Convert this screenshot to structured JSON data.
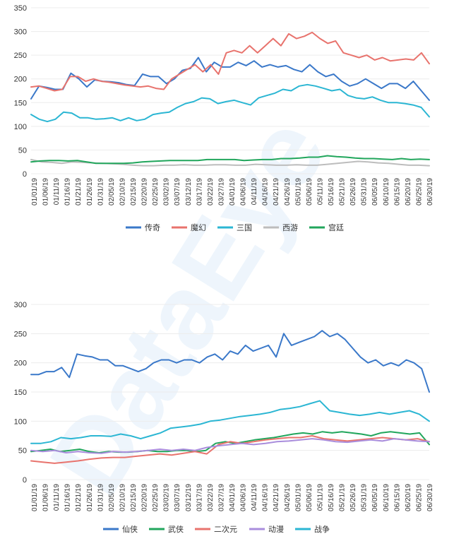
{
  "watermark": "DataEye",
  "chart_data": [
    {
      "type": "line",
      "ylim": [
        0,
        350
      ],
      "yticks": [
        0,
        50,
        100,
        150,
        200,
        250,
        300,
        350
      ],
      "x_tick_labels": [
        "01/01/19",
        "01/06/19",
        "01/11/19",
        "01/16/19",
        "01/21/19",
        "01/26/19",
        "01/31/19",
        "02/05/19",
        "02/10/19",
        "02/15/19",
        "02/20/19",
        "02/25/19",
        "03/02/19",
        "03/07/19",
        "03/12/19",
        "03/17/19",
        "03/22/19",
        "03/27/19",
        "04/01/19",
        "04/06/19",
        "04/11/19",
        "04/16/19",
        "04/21/19",
        "04/26/19",
        "05/01/19",
        "05/06/19",
        "05/11/19",
        "05/16/19",
        "05/21/19",
        "05/26/19",
        "05/31/19",
        "06/05/19",
        "06/10/19",
        "06/15/19",
        "06/20/19",
        "06/25/19",
        "06/30/19"
      ],
      "legend_position": "bottom",
      "series": [
        {
          "name": "传奇",
          "color": "#3a78c9",
          "values": [
            158,
            185,
            182,
            178,
            178,
            212,
            200,
            183,
            198,
            195,
            194,
            192,
            188,
            186,
            210,
            205,
            205,
            190,
            200,
            218,
            222,
            245,
            215,
            235,
            225,
            225,
            235,
            228,
            238,
            225,
            230,
            225,
            228,
            220,
            215,
            230,
            215,
            205,
            210,
            195,
            185,
            190,
            200,
            190,
            180,
            190,
            190,
            180,
            195,
            175,
            155
          ]
        },
        {
          "name": "魔幻",
          "color": "#e8736d",
          "values": [
            183,
            185,
            180,
            175,
            178,
            205,
            205,
            195,
            200,
            195,
            193,
            190,
            187,
            185,
            183,
            185,
            180,
            178,
            200,
            210,
            220,
            230,
            215,
            230,
            210,
            255,
            260,
            255,
            270,
            255,
            270,
            285,
            270,
            295,
            285,
            290,
            298,
            285,
            275,
            280,
            255,
            250,
            245,
            250,
            240,
            245,
            238,
            240,
            242,
            240,
            255,
            232
          ]
        },
        {
          "name": "三国",
          "color": "#2bb6d3",
          "values": [
            125,
            115,
            110,
            115,
            130,
            128,
            118,
            118,
            115,
            116,
            118,
            112,
            118,
            112,
            115,
            125,
            128,
            130,
            140,
            148,
            152,
            160,
            158,
            148,
            152,
            155,
            150,
            145,
            160,
            165,
            170,
            178,
            175,
            185,
            188,
            185,
            180,
            175,
            178,
            165,
            160,
            158,
            162,
            155,
            150,
            150,
            148,
            145,
            140,
            120
          ]
        },
        {
          "name": "西游",
          "color": "#bdbdbd",
          "values": [
            30,
            25,
            24,
            22,
            25,
            24,
            23,
            22,
            21,
            20,
            18,
            17,
            17,
            18,
            18,
            19,
            18,
            18,
            19,
            19,
            18,
            18,
            20,
            19,
            18,
            18,
            19,
            18,
            18,
            20,
            22,
            24,
            26,
            25,
            23,
            22,
            20,
            18,
            18,
            17
          ]
        },
        {
          "name": "宫廷",
          "color": "#21a65c",
          "values": [
            25,
            27,
            28,
            28,
            27,
            28,
            25,
            22,
            22,
            22,
            22,
            23,
            25,
            26,
            27,
            28,
            28,
            28,
            28,
            30,
            30,
            30,
            30,
            28,
            29,
            30,
            30,
            32,
            32,
            33,
            35,
            35,
            38,
            36,
            35,
            33,
            32,
            32,
            31,
            30,
            32,
            30,
            31,
            30
          ]
        }
      ]
    },
    {
      "type": "line",
      "ylim": [
        0,
        300
      ],
      "yticks": [
        0,
        50,
        100,
        150,
        200,
        250,
        300
      ],
      "x_tick_labels": [
        "01/01/19",
        "01/06/19",
        "01/11/19",
        "01/16/19",
        "01/21/19",
        "01/26/19",
        "01/31/19",
        "02/05/19",
        "02/10/19",
        "02/15/19",
        "02/20/19",
        "02/25/19",
        "03/02/19",
        "03/07/19",
        "03/12/19",
        "03/17/19",
        "03/22/19",
        "03/27/19",
        "04/01/19",
        "04/06/19",
        "04/11/19",
        "04/16/19",
        "04/21/19",
        "04/26/19",
        "05/01/19",
        "05/06/19",
        "05/11/19",
        "05/16/19",
        "05/21/19",
        "05/26/19",
        "05/31/19",
        "06/05/19",
        "06/10/19",
        "06/15/19",
        "06/20/19",
        "06/25/19",
        "06/30/19"
      ],
      "legend_position": "bottom",
      "series": [
        {
          "name": "仙侠",
          "color": "#3a78c9",
          "values": [
            180,
            180,
            185,
            185,
            192,
            175,
            215,
            212,
            210,
            205,
            205,
            195,
            195,
            190,
            185,
            190,
            200,
            205,
            205,
            200,
            205,
            205,
            200,
            210,
            215,
            205,
            220,
            215,
            230,
            220,
            225,
            230,
            210,
            250,
            230,
            235,
            240,
            245,
            255,
            245,
            250,
            240,
            225,
            210,
            200,
            205,
            195,
            200,
            195,
            205,
            200,
            190,
            150
          ]
        },
        {
          "name": "武侠",
          "color": "#21a65c",
          "values": [
            48,
            50,
            52,
            48,
            50,
            52,
            48,
            46,
            48,
            47,
            47,
            48,
            50,
            48,
            48,
            50,
            50,
            48,
            50,
            62,
            65,
            62,
            65,
            68,
            70,
            72,
            75,
            78,
            80,
            78,
            82,
            80,
            82,
            80,
            78,
            75,
            80,
            82,
            80,
            78,
            80,
            60
          ]
        },
        {
          "name": "二次元",
          "color": "#e8736d",
          "values": [
            32,
            30,
            28,
            30,
            32,
            35,
            37,
            38,
            38,
            40,
            42,
            44,
            42,
            45,
            48,
            44,
            60,
            65,
            62,
            65,
            68,
            70,
            72,
            72,
            75,
            70,
            68,
            66,
            68,
            70,
            72,
            70,
            68,
            70,
            65
          ]
        },
        {
          "name": "动漫",
          "color": "#a98ddc",
          "values": [
            50,
            48,
            50,
            46,
            48,
            46,
            45,
            48,
            47,
            48,
            50,
            52,
            50,
            52,
            50,
            55,
            58,
            60,
            62,
            60,
            62,
            65,
            66,
            68,
            70,
            68,
            65,
            64,
            66,
            68,
            66,
            70,
            68,
            66,
            65
          ]
        },
        {
          "name": "战争",
          "color": "#2bb6d3",
          "values": [
            62,
            62,
            65,
            72,
            70,
            72,
            75,
            75,
            74,
            78,
            75,
            70,
            75,
            80,
            88,
            90,
            92,
            95,
            100,
            102,
            105,
            108,
            110,
            112,
            115,
            120,
            122,
            125,
            130,
            135,
            118,
            115,
            112,
            110,
            112,
            115,
            112,
            115,
            118,
            112,
            100
          ]
        }
      ]
    }
  ]
}
